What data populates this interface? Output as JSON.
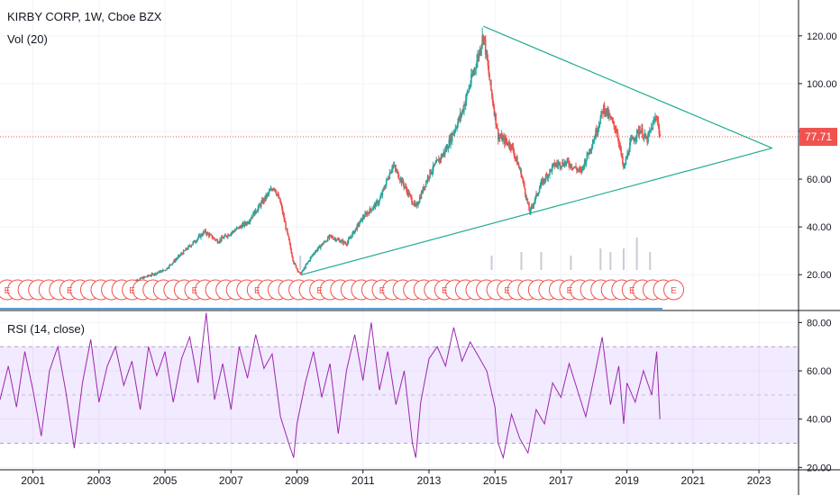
{
  "chart_data": [
    {
      "type": "candlestick",
      "title": "KIRBY CORP, 1W, Cboe BZX",
      "volume_label": "Vol (20)",
      "last_price": "77.71",
      "ylim": [
        5,
        135
      ],
      "y_ticks": [
        "120.00",
        "100.00",
        "80.00",
        "60.00",
        "40.00",
        "20.00"
      ],
      "x_ticks": [
        "2001",
        "2003",
        "2005",
        "2007",
        "2009",
        "2011",
        "2013",
        "2015",
        "2017",
        "2019",
        "2021",
        "2023"
      ],
      "x_range": [
        2000.0,
        2024.2
      ],
      "price_path": [
        [
          2004.0,
          17
        ],
        [
          2005.0,
          22
        ],
        [
          2006.2,
          38
        ],
        [
          2006.6,
          34
        ],
        [
          2007.5,
          42
        ],
        [
          2008.3,
          57
        ],
        [
          2008.5,
          50
        ],
        [
          2008.9,
          25
        ],
        [
          2009.1,
          20
        ],
        [
          2009.5,
          29
        ],
        [
          2010.0,
          36
        ],
        [
          2010.5,
          33
        ],
        [
          2011.0,
          44
        ],
        [
          2011.5,
          51
        ],
        [
          2011.9,
          66
        ],
        [
          2012.3,
          56
        ],
        [
          2012.6,
          48
        ],
        [
          2013.0,
          62
        ],
        [
          2013.5,
          72
        ],
        [
          2014.0,
          88
        ],
        [
          2014.5,
          112
        ],
        [
          2014.65,
          121
        ],
        [
          2014.85,
          100
        ],
        [
          2015.1,
          78
        ],
        [
          2015.5,
          74
        ],
        [
          2015.8,
          62
        ],
        [
          2016.05,
          46
        ],
        [
          2016.4,
          58
        ],
        [
          2016.8,
          66
        ],
        [
          2017.2,
          67
        ],
        [
          2017.6,
          63
        ],
        [
          2018.0,
          77
        ],
        [
          2018.3,
          90
        ],
        [
          2018.7,
          80
        ],
        [
          2018.9,
          64
        ],
        [
          2019.1,
          75
        ],
        [
          2019.4,
          81
        ],
        [
          2019.6,
          76
        ],
        [
          2019.9,
          87
        ],
        [
          2020.0,
          77.71
        ]
      ],
      "trendlines": [
        {
          "from": [
            2014.65,
            124
          ],
          "to": [
            2023.4,
            73
          ]
        },
        {
          "from": [
            2009.15,
            20
          ],
          "to": [
            2023.4,
            73
          ]
        }
      ],
      "horizontal_line": 77.71,
      "earnings_markers": {
        "label": "E",
        "count": 65,
        "from": 2000.0,
        "to": 2020.2
      },
      "volume_bars": [
        [
          2009.1,
          4
        ],
        [
          2014.9,
          4
        ],
        [
          2015.8,
          5
        ],
        [
          2016.4,
          5
        ],
        [
          2017.3,
          4
        ],
        [
          2018.2,
          6
        ],
        [
          2018.5,
          5
        ],
        [
          2018.9,
          6
        ],
        [
          2019.3,
          9
        ],
        [
          2019.7,
          5
        ]
      ]
    },
    {
      "type": "line",
      "title": "RSI (14, close)",
      "ylim": [
        19,
        85
      ],
      "y_ticks": [
        "80.00",
        "60.00",
        "40.00",
        "20.00"
      ],
      "band": [
        30,
        70
      ],
      "x_range": [
        2000.0,
        2024.2
      ],
      "series": [
        {
          "values": [
            [
              2000.0,
              48
            ],
            [
              2000.25,
              62
            ],
            [
              2000.5,
              45
            ],
            [
              2000.75,
              68
            ],
            [
              2001.0,
              52
            ],
            [
              2001.25,
              33
            ],
            [
              2001.5,
              60
            ],
            [
              2001.75,
              70
            ],
            [
              2002.0,
              51
            ],
            [
              2002.25,
              28
            ],
            [
              2002.5,
              55
            ],
            [
              2002.75,
              73
            ],
            [
              2003.0,
              47
            ],
            [
              2003.25,
              62
            ],
            [
              2003.5,
              70
            ],
            [
              2003.75,
              54
            ],
            [
              2004.0,
              64
            ],
            [
              2004.25,
              44
            ],
            [
              2004.5,
              70
            ],
            [
              2004.75,
              58
            ],
            [
              2005.0,
              68
            ],
            [
              2005.25,
              47
            ],
            [
              2005.5,
              65
            ],
            [
              2005.75,
              74
            ],
            [
              2006.0,
              55
            ],
            [
              2006.25,
              84
            ],
            [
              2006.5,
              48
            ],
            [
              2006.75,
              63
            ],
            [
              2007.0,
              44
            ],
            [
              2007.25,
              70
            ],
            [
              2007.5,
              57
            ],
            [
              2007.75,
              75
            ],
            [
              2008.0,
              61
            ],
            [
              2008.25,
              67
            ],
            [
              2008.5,
              41
            ],
            [
              2008.75,
              30
            ],
            [
              2008.9,
              24
            ],
            [
              2009.0,
              38
            ],
            [
              2009.25,
              55
            ],
            [
              2009.5,
              68
            ],
            [
              2009.75,
              49
            ],
            [
              2010.0,
              63
            ],
            [
              2010.25,
              34
            ],
            [
              2010.5,
              60
            ],
            [
              2010.75,
              75
            ],
            [
              2011.0,
              56
            ],
            [
              2011.25,
              80
            ],
            [
              2011.5,
              52
            ],
            [
              2011.75,
              68
            ],
            [
              2012.0,
              46
            ],
            [
              2012.25,
              60
            ],
            [
              2012.5,
              30
            ],
            [
              2012.6,
              24
            ],
            [
              2012.75,
              47
            ],
            [
              2013.0,
              65
            ],
            [
              2013.25,
              70
            ],
            [
              2013.5,
              62
            ],
            [
              2013.75,
              78
            ],
            [
              2014.0,
              64
            ],
            [
              2014.25,
              72
            ],
            [
              2014.5,
              66
            ],
            [
              2014.75,
              60
            ],
            [
              2015.0,
              45
            ],
            [
              2015.1,
              30
            ],
            [
              2015.25,
              24
            ],
            [
              2015.5,
              42
            ],
            [
              2015.75,
              32
            ],
            [
              2016.0,
              26
            ],
            [
              2016.25,
              44
            ],
            [
              2016.5,
              38
            ],
            [
              2016.75,
              55
            ],
            [
              2017.0,
              49
            ],
            [
              2017.25,
              63
            ],
            [
              2017.5,
              52
            ],
            [
              2017.75,
              41
            ],
            [
              2018.0,
              57
            ],
            [
              2018.25,
              74
            ],
            [
              2018.5,
              46
            ],
            [
              2018.75,
              62
            ],
            [
              2018.9,
              38
            ],
            [
              2019.0,
              55
            ],
            [
              2019.25,
              47
            ],
            [
              2019.5,
              60
            ],
            [
              2019.75,
              50
            ],
            [
              2019.9,
              68
            ],
            [
              2020.0,
              40
            ]
          ]
        }
      ]
    }
  ]
}
